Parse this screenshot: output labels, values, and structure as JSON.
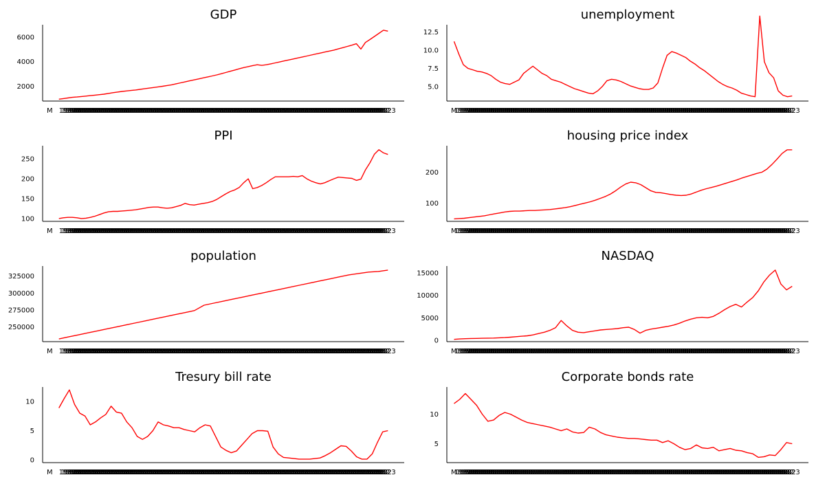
{
  "figure": {
    "background": "#ffffff",
    "line_color": "#ff0000"
  },
  "chart_data": [
    {
      "type": "line",
      "title": "GDP",
      "x_first": "1982",
      "x_last": "2023",
      "xticks": [
        "M",
        "1982",
        "2023"
      ],
      "yticks": [
        2000,
        4000,
        6000
      ],
      "ylim": [
        800,
        7000
      ],
      "grid": false,
      "series": [
        {
          "values": [
            950,
            1000,
            1050,
            1100,
            1130,
            1170,
            1200,
            1240,
            1280,
            1320,
            1360,
            1420,
            1480,
            1530,
            1580,
            1620,
            1660,
            1700,
            1750,
            1800,
            1850,
            1900,
            1950,
            2000,
            2060,
            2120,
            2200,
            2280,
            2360,
            2440,
            2520,
            2600,
            2680,
            2760,
            2840,
            2920,
            3020,
            3120,
            3220,
            3320,
            3420,
            3520,
            3600,
            3680,
            3750,
            3700,
            3750,
            3820,
            3900,
            3980,
            4060,
            4140,
            4220,
            4300,
            4380,
            4460,
            4540,
            4620,
            4700,
            4780,
            4860,
            4940,
            5040,
            5140,
            5240,
            5340,
            5460,
            5020,
            5560,
            5800,
            6050,
            6300,
            6560,
            6480
          ]
        }
      ]
    },
    {
      "type": "line",
      "title": "unemployment",
      "x_first": "1982",
      "x_last": "2023",
      "xticks": [
        "M",
        "1982",
        "2023"
      ],
      "yticks": [
        "5.0",
        "7.5",
        "10.0",
        "12.5"
      ],
      "ylim": [
        3.0,
        13.5
      ],
      "grid": false,
      "series": [
        {
          "values": [
            11.2,
            9.5,
            8.0,
            7.5,
            7.3,
            7.1,
            7.0,
            6.8,
            6.5,
            6.0,
            5.6,
            5.4,
            5.3,
            5.6,
            5.9,
            6.8,
            7.3,
            7.8,
            7.3,
            6.8,
            6.5,
            6.0,
            5.8,
            5.6,
            5.3,
            5.0,
            4.7,
            4.5,
            4.3,
            4.1,
            4.0,
            4.4,
            5.0,
            5.8,
            6.0,
            5.9,
            5.7,
            5.4,
            5.1,
            4.9,
            4.7,
            4.6,
            4.6,
            4.8,
            5.5,
            7.5,
            9.3,
            9.8,
            9.6,
            9.3,
            9.0,
            8.5,
            8.1,
            7.6,
            7.2,
            6.7,
            6.2,
            5.7,
            5.3,
            5.0,
            4.8,
            4.5,
            4.1,
            3.9,
            3.7,
            3.6,
            14.7,
            8.4,
            6.9,
            6.2,
            4.4,
            3.8,
            3.6,
            3.7
          ]
        }
      ]
    },
    {
      "type": "line",
      "title": "PPI",
      "x_first": "1982",
      "x_last": "2023",
      "xticks": [
        "M",
        "1982",
        "2023"
      ],
      "yticks": [
        100,
        150,
        200,
        250
      ],
      "ylim": [
        93,
        283
      ],
      "grid": false,
      "series": [
        {
          "values": [
            100,
            102,
            103,
            103,
            102,
            100,
            101,
            103,
            106,
            110,
            114,
            117,
            118,
            118,
            119,
            120,
            121,
            122,
            124,
            126,
            128,
            129,
            129,
            127,
            126,
            127,
            130,
            133,
            138,
            135,
            134,
            136,
            138,
            140,
            143,
            148,
            155,
            162,
            168,
            172,
            178,
            190,
            200,
            175,
            178,
            183,
            190,
            198,
            205,
            205,
            205,
            205,
            206,
            205,
            208,
            200,
            194,
            190,
            187,
            190,
            195,
            200,
            204,
            203,
            202,
            201,
            196,
            199,
            222,
            240,
            262,
            273,
            265,
            261
          ]
        }
      ]
    },
    {
      "type": "line",
      "title": "housing price index",
      "x_first": "1982",
      "x_last": "2023",
      "xticks": [
        "M",
        "1982",
        "2023"
      ],
      "yticks": [
        100,
        200
      ],
      "ylim": [
        42,
        285
      ],
      "grid": false,
      "series": [
        {
          "values": [
            50,
            51,
            52,
            54,
            56,
            58,
            60,
            63,
            66,
            69,
            72,
            74,
            75,
            75,
            76,
            77,
            77,
            78,
            79,
            80,
            82,
            84,
            86,
            89,
            93,
            97,
            101,
            105,
            110,
            116,
            122,
            130,
            140,
            152,
            162,
            168,
            166,
            160,
            150,
            140,
            135,
            134,
            131,
            128,
            126,
            125,
            126,
            130,
            136,
            142,
            147,
            151,
            155,
            160,
            165,
            170,
            175,
            181,
            186,
            191,
            196,
            200,
            210,
            225,
            242,
            260,
            272,
            272
          ]
        }
      ]
    },
    {
      "type": "line",
      "title": "population",
      "x_first": "1982",
      "x_last": "2023",
      "xticks": [
        "M",
        "1982",
        "2023"
      ],
      "yticks": [
        250000,
        275000,
        300000,
        325000
      ],
      "ylim": [
        228000,
        340000
      ],
      "grid": false,
      "series": [
        {
          "values": [
            232000,
            235000,
            238000,
            241000,
            244000,
            247000,
            250000,
            253000,
            256000,
            259000,
            262000,
            265000,
            268000,
            271000,
            274000,
            282000,
            285000,
            288000,
            291000,
            294000,
            297000,
            300000,
            303000,
            306000,
            309000,
            312000,
            315000,
            318000,
            321000,
            324000,
            327000,
            329000,
            331000,
            332000,
            334000
          ]
        }
      ]
    },
    {
      "type": "line",
      "title": "NASDAQ",
      "x_first": "1982",
      "x_last": "2023",
      "xticks": [
        "M",
        "1982",
        "2023"
      ],
      "yticks": [
        0,
        5000,
        10000,
        15000
      ],
      "ylim": [
        -300,
        16500
      ],
      "grid": false,
      "series": [
        {
          "values": [
            200,
            300,
            350,
            400,
            420,
            450,
            480,
            500,
            550,
            600,
            700,
            800,
            900,
            1000,
            1200,
            1500,
            1800,
            2200,
            2800,
            4400,
            3200,
            2200,
            1800,
            1700,
            1900,
            2100,
            2300,
            2400,
            2500,
            2600,
            2800,
            2900,
            2400,
            1600,
            2200,
            2500,
            2700,
            2900,
            3100,
            3400,
            3800,
            4300,
            4700,
            5000,
            5100,
            5000,
            5300,
            6000,
            6800,
            7500,
            8000,
            7400,
            8500,
            9500,
            11000,
            13000,
            14500,
            15600,
            12500,
            11200,
            12000
          ]
        }
      ]
    },
    {
      "type": "line",
      "title": "Tresury bill rate",
      "x_first": "1982",
      "x_last": "2023",
      "xticks": [
        "M",
        "1982",
        "2023"
      ],
      "yticks": [
        0,
        5,
        10
      ],
      "ylim": [
        -0.5,
        12.5
      ],
      "grid": false,
      "series": [
        {
          "values": [
            8.9,
            10.5,
            12.0,
            9.5,
            8.0,
            7.5,
            6.0,
            6.5,
            7.2,
            7.8,
            9.2,
            8.2,
            8.0,
            6.5,
            5.5,
            4.0,
            3.5,
            4.0,
            5.0,
            6.5,
            6.0,
            5.8,
            5.5,
            5.5,
            5.2,
            5.0,
            4.8,
            5.5,
            6.0,
            5.8,
            4.0,
            2.2,
            1.6,
            1.2,
            1.5,
            2.5,
            3.5,
            4.5,
            5.0,
            5.0,
            4.9,
            2.2,
            1.0,
            0.4,
            0.3,
            0.2,
            0.1,
            0.1,
            0.1,
            0.2,
            0.3,
            0.7,
            1.2,
            1.8,
            2.4,
            2.3,
            1.5,
            0.5,
            0.1,
            0.1,
            1.0,
            3.0,
            4.8,
            5.0
          ]
        }
      ]
    },
    {
      "type": "line",
      "title": "Corporate bonds rate",
      "x_first": "1982",
      "x_last": "2023",
      "xticks": [
        "M",
        "1982",
        "2023"
      ],
      "yticks": [
        5,
        10
      ],
      "ylim": [
        1.8,
        14.6
      ],
      "grid": false,
      "series": [
        {
          "values": [
            11.8,
            12.5,
            13.5,
            12.5,
            11.5,
            10.0,
            8.8,
            9.0,
            9.8,
            10.3,
            10.0,
            9.5,
            9.0,
            8.6,
            8.4,
            8.2,
            8.0,
            7.8,
            7.5,
            7.2,
            7.5,
            7.0,
            6.8,
            6.9,
            7.8,
            7.5,
            6.9,
            6.5,
            6.3,
            6.1,
            6.0,
            5.9,
            5.9,
            5.8,
            5.7,
            5.6,
            5.6,
            5.2,
            5.5,
            5.0,
            4.4,
            4.0,
            4.2,
            4.8,
            4.3,
            4.2,
            4.4,
            3.8,
            4.0,
            4.2,
            3.9,
            3.8,
            3.5,
            3.3,
            2.7,
            2.8,
            3.1,
            3.0,
            4.0,
            5.2,
            5.0
          ]
        }
      ]
    }
  ]
}
